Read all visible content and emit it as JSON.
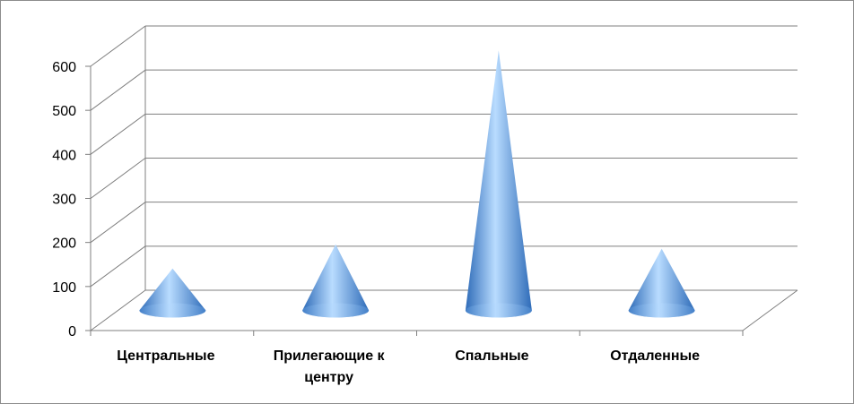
{
  "chart_data": {
    "type": "bar",
    "style": "3d-cone",
    "categories": [
      [
        "Центральные"
      ],
      [
        "Прилегающие к",
        "центру"
      ],
      [
        "Спальные"
      ],
      [
        "Отдаленные"
      ]
    ],
    "values": [
      95,
      150,
      590,
      140
    ],
    "y_ticks": [
      "0",
      "100",
      "200",
      "300",
      "400",
      "500",
      "600"
    ],
    "ylim": [
      0,
      600
    ],
    "grid": true,
    "legend": "none",
    "colors": {
      "cone_light": "#b9dcff",
      "cone_mid": "#6ba6e6",
      "cone_dark": "#2e6bb8",
      "grid": "#7f7f7f",
      "axis": "#7f7f7f"
    }
  }
}
